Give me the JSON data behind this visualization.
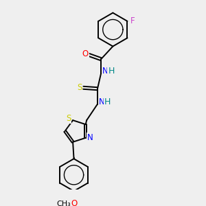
{
  "bg_color": "#efefef",
  "bond_color": "#000000",
  "bond_width": 1.4,
  "atom_colors": {
    "O": "#ff0000",
    "N": "#0000ff",
    "S": "#cccc00",
    "F": "#cc44cc",
    "H": "#008888",
    "C": "#000000"
  },
  "font_size": 8.5,
  "figsize": [
    3.0,
    3.0
  ],
  "dpi": 100,
  "xlim": [
    -2.5,
    2.5
  ],
  "ylim": [
    -4.8,
    4.8
  ]
}
